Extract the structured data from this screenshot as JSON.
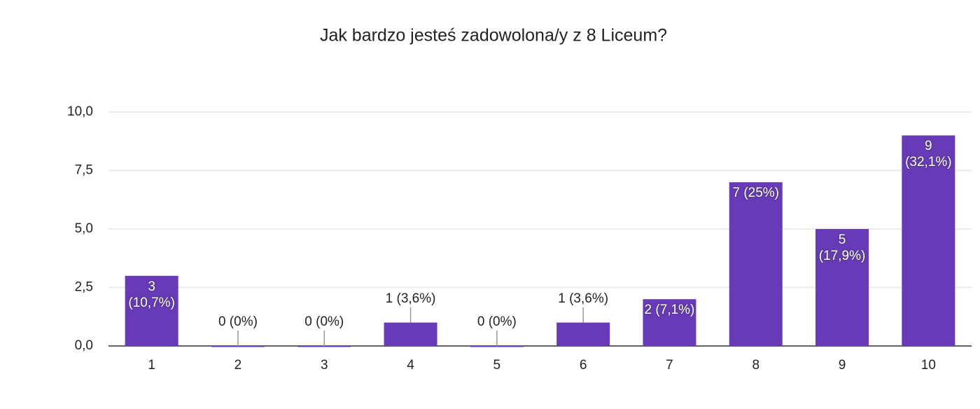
{
  "chart_data": {
    "type": "bar",
    "title": "Jak bardzo jesteś zadowolona/y z 8 Liceum?",
    "categories": [
      "1",
      "2",
      "3",
      "4",
      "5",
      "6",
      "7",
      "8",
      "9",
      "10"
    ],
    "values": [
      3,
      0,
      0,
      1,
      0,
      1,
      2,
      7,
      5,
      9
    ],
    "value_labels": [
      "3 (10,7%)",
      "0 (0%)",
      "0 (0%)",
      "1 (3,6%)",
      "0 (0%)",
      "1 (3,6%)",
      "2 (7,1%)",
      "7 (25%)",
      "5 (17,9%)",
      "9 (32,1%)"
    ],
    "color": "#673ab7",
    "ylim": [
      0,
      10
    ],
    "yticks": [
      {
        "value": 0,
        "label": "0,0"
      },
      {
        "value": 2.5,
        "label": "2,5"
      },
      {
        "value": 5,
        "label": "5,0"
      },
      {
        "value": 7.5,
        "label": "7,5"
      },
      {
        "value": 10,
        "label": "10,0"
      }
    ],
    "grid": true
  }
}
